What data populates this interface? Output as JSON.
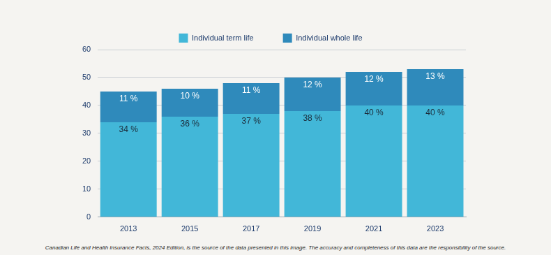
{
  "chart_data": {
    "type": "bar",
    "stacked": true,
    "categories": [
      "2013",
      "2015",
      "2017",
      "2019",
      "2021",
      "2023"
    ],
    "series": [
      {
        "name": "Individual term life",
        "color": "#42b7d8",
        "values": [
          34,
          36,
          37,
          38,
          40,
          40
        ],
        "value_labels": [
          "34 %",
          "36 %",
          "37 %",
          "38 %",
          "40 %",
          "40 %"
        ]
      },
      {
        "name": "Individual whole life",
        "color": "#2f8abb",
        "values": [
          11,
          10,
          11,
          12,
          12,
          13
        ],
        "value_labels": [
          "11 %",
          "10 %",
          "11 %",
          "12 %",
          "12 %",
          "13 %"
        ]
      }
    ],
    "ylim": [
      0,
      60
    ],
    "yticks": [
      0,
      10,
      20,
      30,
      40,
      50,
      60
    ],
    "grid": true,
    "legend": "top",
    "data_labels": true,
    "annotations": [
      "Canadian Life and Health Insurance Facts, 2024 Edition, is the source of the data presented in this image. The accuracy and completeness of this data are the responsibility of the source."
    ]
  }
}
